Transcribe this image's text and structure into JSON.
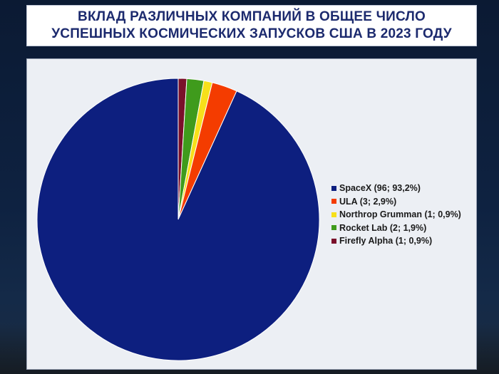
{
  "title": "ВКЛАД РАЗЛИЧНЫХ КОМПАНИЙ В ОБЩЕЕ ЧИСЛО УСПЕШНЫХ КОСМИЧЕСКИХ ЗАПУСКОВ США В 2023 ГОДУ",
  "chart_data": {
    "type": "pie",
    "title": "ВКЛАД РАЗЛИЧНЫХ КОМПАНИЙ В ОБЩЕЕ ЧИСЛО УСПЕШНЫХ КОСМИЧЕСКИХ ЗАПУСКОВ США В 2023 ГОДУ",
    "legend_position": "right",
    "slices": [
      {
        "label": "SpaceX (96; 93,2%)",
        "value": 96,
        "percent": 93.2,
        "color": "#0d1f7f"
      },
      {
        "label": "ULA (3; 2,9%)",
        "value": 3,
        "percent": 2.9,
        "color": "#f43c00"
      },
      {
        "label": "Northrop Grumman (1; 0,9%)",
        "value": 1,
        "percent": 0.9,
        "color": "#f7e01a"
      },
      {
        "label": "Rocket Lab (2; 1,9%)",
        "value": 2,
        "percent": 1.9,
        "color": "#3f9b1c"
      },
      {
        "label": "Firefly Alpha (1; 0,9%)",
        "value": 1,
        "percent": 0.9,
        "color": "#7a0f2a"
      }
    ]
  }
}
